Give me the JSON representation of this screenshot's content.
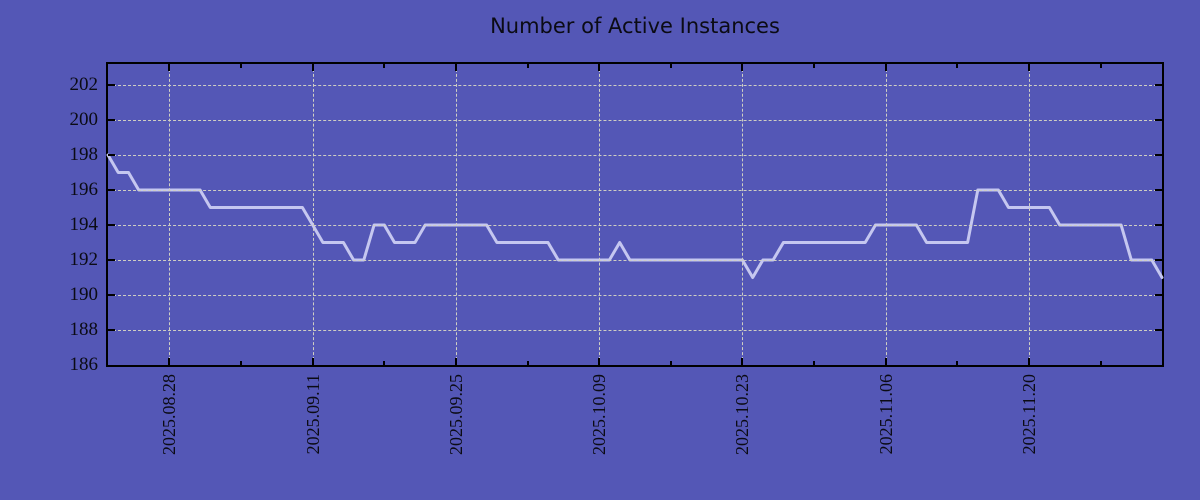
{
  "title": "Number of Active Instances",
  "colors": {
    "background": "#5457b6",
    "line": "#c5c7f0",
    "grid": "#cfcfc3",
    "axis": "#000000",
    "text": "#0b0b14"
  },
  "chart_data": {
    "type": "line",
    "title": "Number of Active Instances",
    "xlabel": "",
    "ylabel": "",
    "legend": "none",
    "grid": "dashed",
    "x_tick_labels": [
      "2025.08.28",
      "2025.09.11",
      "2025.09.25",
      "2025.10.09",
      "2025.10.23",
      "2025.11.06",
      "2025.11.20"
    ],
    "x_tick_days": [
      6,
      20,
      34,
      48,
      62,
      76,
      90
    ],
    "x_minor_tick_days": [
      13,
      27,
      41,
      55,
      69,
      83,
      97
    ],
    "x_total_days": 103,
    "y_ticks": [
      202,
      200,
      198,
      196,
      194,
      192,
      190,
      188,
      186
    ],
    "ylim": [
      186,
      203.2
    ],
    "values": [
      198,
      197,
      197,
      196,
      196,
      196,
      196,
      196,
      196,
      196,
      195,
      195,
      195,
      195,
      195,
      195,
      195,
      195,
      195,
      195,
      194,
      193,
      193,
      193,
      192,
      192,
      194,
      194,
      193,
      193,
      193,
      194,
      194,
      194,
      194,
      194,
      194,
      194,
      193,
      193,
      193,
      193,
      193,
      193,
      192,
      192,
      192,
      192,
      192,
      192,
      193,
      192,
      192,
      192,
      192,
      192,
      192,
      192,
      192,
      192,
      192,
      192,
      192,
      191,
      192,
      192,
      193,
      193,
      193,
      193,
      193,
      193,
      193,
      193,
      193,
      194,
      194,
      194,
      194,
      194,
      193,
      193,
      193,
      193,
      193,
      196,
      196,
      196,
      195,
      195,
      195,
      195,
      195,
      194,
      194,
      194,
      194,
      194,
      194,
      194,
      192,
      192,
      192,
      191
    ]
  }
}
